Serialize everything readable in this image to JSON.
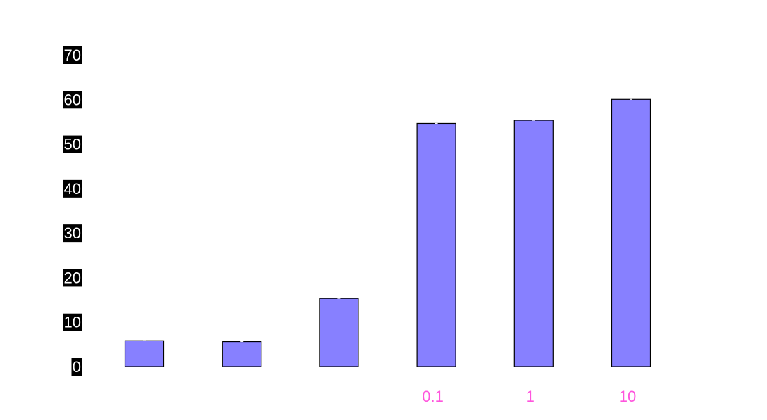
{
  "chart_data": {
    "type": "bar",
    "title": "",
    "xlabel": "",
    "ylabel": "",
    "ylim": [
      0,
      70
    ],
    "yticks": [
      0,
      10,
      20,
      30,
      40,
      50,
      60,
      70
    ],
    "categories": [
      "",
      "",
      "",
      "0.1",
      "1",
      "10"
    ],
    "values": [
      5.8,
      5.6,
      15.3,
      54.6,
      55.3,
      60.0
    ],
    "grid": false,
    "legend": "none",
    "colors": {
      "bar_fill": "#8780ff",
      "bar_stroke": "#000000",
      "ytick_label_bg": "#000000",
      "ytick_label_text": "#ffffff",
      "xtick_label": "#ff55dd"
    }
  }
}
